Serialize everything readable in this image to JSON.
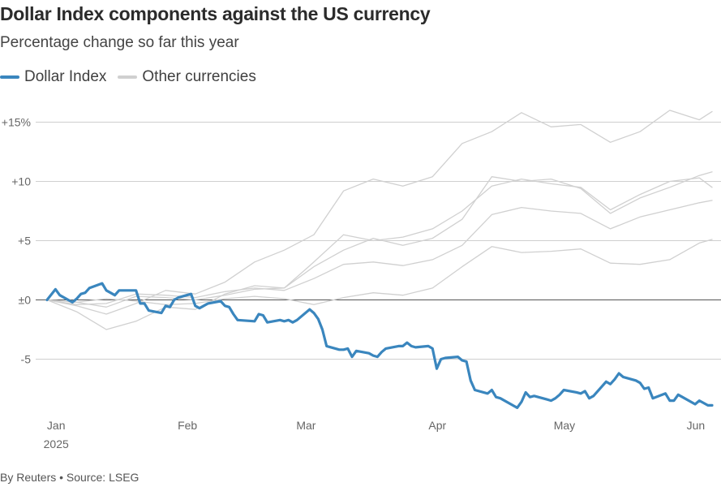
{
  "title": "Dollar Index components against the US currency",
  "subtitle": "Percentage change so far this year",
  "footer": "By Reuters • Source: LSEG",
  "colors": {
    "dollar_index": "#3a86be",
    "other": "#d0d0d0",
    "grid": "#cfcfcf",
    "zero": "#555555"
  },
  "chart_data": {
    "type": "line",
    "title": "Dollar Index components against the US currency",
    "subtitle": "Percentage change so far this year",
    "ylabel": "",
    "xlabel": "",
    "ylim": [
      -9.5,
      16.5
    ],
    "yticks": [
      {
        "value": 15,
        "label": "+15%"
      },
      {
        "value": 10,
        "label": "+10"
      },
      {
        "value": 5,
        "label": "+5"
      },
      {
        "value": 0,
        "label": "±0"
      },
      {
        "value": -5,
        "label": "-5"
      }
    ],
    "xlim": [
      "2024-12-31",
      "2025-06-06"
    ],
    "xticks": [
      {
        "date": "2025-01-01",
        "label": "Jan",
        "sublabel": "2025"
      },
      {
        "date": "2025-02-01",
        "label": "Feb"
      },
      {
        "date": "2025-03-01",
        "label": "Mar"
      },
      {
        "date": "2025-04-01",
        "label": "Apr"
      },
      {
        "date": "2025-05-01",
        "label": "May"
      },
      {
        "date": "2025-06-01",
        "label": "Jun"
      }
    ],
    "grid": true,
    "legend": "top-left",
    "series": [
      {
        "name": "Dollar Index",
        "color": "#3a86be",
        "points": [
          [
            "2024-12-31",
            0
          ],
          [
            "2025-01-02",
            0.9
          ],
          [
            "2025-01-03",
            0.4
          ],
          [
            "2025-01-06",
            -0.2
          ],
          [
            "2025-01-07",
            0.1
          ],
          [
            "2025-01-08",
            0.5
          ],
          [
            "2025-01-09",
            0.6
          ],
          [
            "2025-01-10",
            1.0
          ],
          [
            "2025-01-13",
            1.4
          ],
          [
            "2025-01-14",
            0.8
          ],
          [
            "2025-01-15",
            0.6
          ],
          [
            "2025-01-16",
            0.4
          ],
          [
            "2025-01-17",
            0.8
          ],
          [
            "2025-01-21",
            0.8
          ],
          [
            "2025-01-22",
            -0.3
          ],
          [
            "2025-01-23",
            -0.3
          ],
          [
            "2025-01-24",
            -0.9
          ],
          [
            "2025-01-27",
            -1.1
          ],
          [
            "2025-01-28",
            -0.5
          ],
          [
            "2025-01-29",
            -0.6
          ],
          [
            "2025-01-30",
            0.0
          ],
          [
            "2025-01-31",
            0.2
          ],
          [
            "2025-02-03",
            0.5
          ],
          [
            "2025-02-04",
            -0.5
          ],
          [
            "2025-02-05",
            -0.7
          ],
          [
            "2025-02-06",
            -0.5
          ],
          [
            "2025-02-07",
            -0.3
          ],
          [
            "2025-02-10",
            -0.1
          ],
          [
            "2025-02-11",
            -0.5
          ],
          [
            "2025-02-12",
            -0.6
          ],
          [
            "2025-02-13",
            -1.2
          ],
          [
            "2025-02-14",
            -1.7
          ],
          [
            "2025-02-18",
            -1.8
          ],
          [
            "2025-02-19",
            -1.2
          ],
          [
            "2025-02-20",
            -1.3
          ],
          [
            "2025-02-21",
            -1.9
          ],
          [
            "2025-02-24",
            -1.7
          ],
          [
            "2025-02-25",
            -1.8
          ],
          [
            "2025-02-26",
            -1.7
          ],
          [
            "2025-02-27",
            -1.9
          ],
          [
            "2025-02-28",
            -1.7
          ],
          [
            "2025-03-03",
            -0.8
          ],
          [
            "2025-03-04",
            -1.1
          ],
          [
            "2025-03-05",
            -1.6
          ],
          [
            "2025-03-06",
            -2.5
          ],
          [
            "2025-03-07",
            -3.9
          ],
          [
            "2025-03-10",
            -4.2
          ],
          [
            "2025-03-11",
            -4.2
          ],
          [
            "2025-03-12",
            -4.1
          ],
          [
            "2025-03-13",
            -4.8
          ],
          [
            "2025-03-14",
            -4.3
          ],
          [
            "2025-03-17",
            -4.5
          ],
          [
            "2025-03-18",
            -4.7
          ],
          [
            "2025-03-19",
            -4.8
          ],
          [
            "2025-03-20",
            -4.4
          ],
          [
            "2025-03-21",
            -4.1
          ],
          [
            "2025-03-24",
            -3.9
          ],
          [
            "2025-03-25",
            -3.9
          ],
          [
            "2025-03-26",
            -3.6
          ],
          [
            "2025-03-27",
            -3.9
          ],
          [
            "2025-03-28",
            -4.0
          ],
          [
            "2025-03-31",
            -3.9
          ],
          [
            "2025-04-01",
            -4.1
          ],
          [
            "2025-04-02",
            -5.8
          ],
          [
            "2025-04-03",
            -5.0
          ],
          [
            "2025-04-04",
            -4.9
          ],
          [
            "2025-04-07",
            -4.8
          ],
          [
            "2025-04-08",
            -5.1
          ],
          [
            "2025-04-09",
            -5.2
          ],
          [
            "2025-04-10",
            -6.8
          ],
          [
            "2025-04-11",
            -7.6
          ],
          [
            "2025-04-14",
            -7.9
          ],
          [
            "2025-04-15",
            -7.6
          ],
          [
            "2025-04-16",
            -8.2
          ],
          [
            "2025-04-17",
            -8.3
          ],
          [
            "2025-04-21",
            -9.1
          ],
          [
            "2025-04-22",
            -8.6
          ],
          [
            "2025-04-23",
            -7.8
          ],
          [
            "2025-04-24",
            -8.2
          ],
          [
            "2025-04-25",
            -8.1
          ],
          [
            "2025-04-28",
            -8.4
          ],
          [
            "2025-04-29",
            -8.5
          ],
          [
            "2025-04-30",
            -8.3
          ],
          [
            "2025-05-01",
            -8.0
          ],
          [
            "2025-05-02",
            -7.6
          ],
          [
            "2025-05-05",
            -7.8
          ],
          [
            "2025-05-06",
            -7.9
          ],
          [
            "2025-05-07",
            -7.7
          ],
          [
            "2025-05-08",
            -8.3
          ],
          [
            "2025-05-09",
            -8.1
          ],
          [
            "2025-05-12",
            -6.9
          ],
          [
            "2025-05-13",
            -7.1
          ],
          [
            "2025-05-14",
            -6.7
          ],
          [
            "2025-05-15",
            -6.2
          ],
          [
            "2025-05-16",
            -6.5
          ],
          [
            "2025-05-19",
            -6.8
          ],
          [
            "2025-05-20",
            -7.0
          ],
          [
            "2025-05-21",
            -7.5
          ],
          [
            "2025-05-22",
            -7.4
          ],
          [
            "2025-05-23",
            -8.3
          ],
          [
            "2025-05-26",
            -7.9
          ],
          [
            "2025-05-27",
            -8.5
          ],
          [
            "2025-05-28",
            -8.5
          ],
          [
            "2025-05-29",
            -8.0
          ],
          [
            "2025-05-30",
            -8.2
          ],
          [
            "2025-06-02",
            -8.8
          ],
          [
            "2025-06-03",
            -8.5
          ],
          [
            "2025-06-04",
            -8.7
          ],
          [
            "2025-06-05",
            -8.9
          ],
          [
            "2025-06-06",
            -8.9
          ]
        ]
      },
      {
        "name": "Other currencies",
        "color": "#d0d0d0",
        "points": [
          [
            "2024-12-31",
            0
          ],
          [
            "2025-01-07",
            -0.5
          ],
          [
            "2025-01-14",
            -1.2
          ],
          [
            "2025-01-21",
            -0.3
          ],
          [
            "2025-01-28",
            0.8
          ],
          [
            "2025-02-04",
            0.5
          ],
          [
            "2025-02-11",
            1.5
          ],
          [
            "2025-02-18",
            3.2
          ],
          [
            "2025-02-25",
            4.2
          ],
          [
            "2025-03-04",
            5.5
          ],
          [
            "2025-03-11",
            9.2
          ],
          [
            "2025-03-18",
            10.2
          ],
          [
            "2025-03-25",
            9.6
          ],
          [
            "2025-04-01",
            10.4
          ],
          [
            "2025-04-08",
            13.2
          ],
          [
            "2025-04-15",
            14.2
          ],
          [
            "2025-04-22",
            15.8
          ],
          [
            "2025-04-29",
            14.6
          ],
          [
            "2025-05-06",
            14.8
          ],
          [
            "2025-05-13",
            13.3
          ],
          [
            "2025-05-20",
            14.2
          ],
          [
            "2025-05-27",
            16.0
          ],
          [
            "2025-06-03",
            15.2
          ],
          [
            "2025-06-06",
            15.9
          ]
        ]
      },
      {
        "name": "Other currencies",
        "color": "#d0d0d0",
        "points": [
          [
            "2024-12-31",
            0
          ],
          [
            "2025-01-07",
            -1.0
          ],
          [
            "2025-01-14",
            -2.5
          ],
          [
            "2025-01-21",
            -1.8
          ],
          [
            "2025-01-28",
            -0.6
          ],
          [
            "2025-02-04",
            -0.8
          ],
          [
            "2025-02-11",
            0.5
          ],
          [
            "2025-02-18",
            1.2
          ],
          [
            "2025-02-25",
            1.0
          ],
          [
            "2025-03-04",
            3.2
          ],
          [
            "2025-03-11",
            5.5
          ],
          [
            "2025-03-18",
            5.0
          ],
          [
            "2025-03-25",
            5.3
          ],
          [
            "2025-04-01",
            6.0
          ],
          [
            "2025-04-08",
            7.5
          ],
          [
            "2025-04-15",
            9.6
          ],
          [
            "2025-04-22",
            10.2
          ],
          [
            "2025-04-29",
            9.8
          ],
          [
            "2025-05-06",
            9.5
          ],
          [
            "2025-05-13",
            7.6
          ],
          [
            "2025-05-20",
            8.9
          ],
          [
            "2025-05-27",
            10.0
          ],
          [
            "2025-06-03",
            10.3
          ],
          [
            "2025-06-06",
            9.5
          ]
        ]
      },
      {
        "name": "Other currencies",
        "color": "#d0d0d0",
        "points": [
          [
            "2024-12-31",
            0
          ],
          [
            "2025-01-07",
            -0.2
          ],
          [
            "2025-01-14",
            -0.6
          ],
          [
            "2025-01-21",
            0.3
          ],
          [
            "2025-01-28",
            0.2
          ],
          [
            "2025-02-04",
            0.0
          ],
          [
            "2025-02-11",
            0.4
          ],
          [
            "2025-02-18",
            0.9
          ],
          [
            "2025-02-25",
            1.0
          ],
          [
            "2025-03-04",
            2.8
          ],
          [
            "2025-03-11",
            4.2
          ],
          [
            "2025-03-18",
            5.2
          ],
          [
            "2025-03-25",
            4.6
          ],
          [
            "2025-04-01",
            5.2
          ],
          [
            "2025-04-08",
            6.8
          ],
          [
            "2025-04-15",
            10.4
          ],
          [
            "2025-04-22",
            10.0
          ],
          [
            "2025-04-29",
            10.2
          ],
          [
            "2025-05-06",
            9.4
          ],
          [
            "2025-05-13",
            7.3
          ],
          [
            "2025-05-20",
            8.6
          ],
          [
            "2025-05-27",
            9.5
          ],
          [
            "2025-06-03",
            10.5
          ],
          [
            "2025-06-06",
            10.8
          ]
        ]
      },
      {
        "name": "Other currencies",
        "color": "#d0d0d0",
        "points": [
          [
            "2024-12-31",
            0
          ],
          [
            "2025-01-07",
            -0.4
          ],
          [
            "2025-01-14",
            -0.3
          ],
          [
            "2025-01-21",
            0.5
          ],
          [
            "2025-01-28",
            0.4
          ],
          [
            "2025-02-04",
            0.2
          ],
          [
            "2025-02-11",
            0.7
          ],
          [
            "2025-02-18",
            1.0
          ],
          [
            "2025-02-25",
            0.8
          ],
          [
            "2025-03-04",
            1.8
          ],
          [
            "2025-03-11",
            3.0
          ],
          [
            "2025-03-18",
            3.2
          ],
          [
            "2025-03-25",
            2.9
          ],
          [
            "2025-04-01",
            3.4
          ],
          [
            "2025-04-08",
            4.6
          ],
          [
            "2025-04-15",
            7.2
          ],
          [
            "2025-04-22",
            7.8
          ],
          [
            "2025-04-29",
            7.5
          ],
          [
            "2025-05-06",
            7.3
          ],
          [
            "2025-05-13",
            6.0
          ],
          [
            "2025-05-20",
            7.0
          ],
          [
            "2025-05-27",
            7.6
          ],
          [
            "2025-06-03",
            8.2
          ],
          [
            "2025-06-06",
            8.4
          ]
        ]
      },
      {
        "name": "Other currencies",
        "color": "#d0d0d0",
        "points": [
          [
            "2024-12-31",
            0
          ],
          [
            "2025-01-07",
            -0.2
          ],
          [
            "2025-01-14",
            0.1
          ],
          [
            "2025-01-21",
            -0.1
          ],
          [
            "2025-01-28",
            -0.4
          ],
          [
            "2025-02-04",
            -0.3
          ],
          [
            "2025-02-11",
            0.1
          ],
          [
            "2025-02-18",
            0.3
          ],
          [
            "2025-02-25",
            0.1
          ],
          [
            "2025-03-04",
            -0.4
          ],
          [
            "2025-03-11",
            0.2
          ],
          [
            "2025-03-18",
            0.6
          ],
          [
            "2025-03-25",
            0.4
          ],
          [
            "2025-04-01",
            1.0
          ],
          [
            "2025-04-08",
            2.8
          ],
          [
            "2025-04-15",
            4.5
          ],
          [
            "2025-04-22",
            4.0
          ],
          [
            "2025-04-29",
            4.1
          ],
          [
            "2025-05-06",
            4.3
          ],
          [
            "2025-05-13",
            3.1
          ],
          [
            "2025-05-20",
            3.0
          ],
          [
            "2025-05-27",
            3.4
          ],
          [
            "2025-06-03",
            4.8
          ],
          [
            "2025-06-06",
            5.1
          ]
        ]
      }
    ]
  }
}
